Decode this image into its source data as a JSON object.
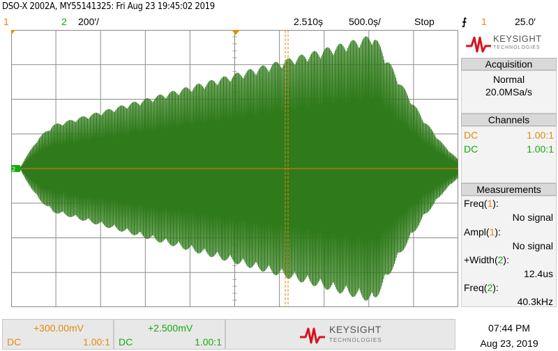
{
  "header": {
    "title": "DSO-X 2002A, MY55141325: Fri Aug 23 19:45:02 2019"
  },
  "status_bar": {
    "ch1_label": "1",
    "ch2_label": "2",
    "ch2_scale": "200′/",
    "trigger_time": "2.510ș",
    "time_scale": "500.0ș/",
    "run_state": "Stop",
    "trigger_source": "1",
    "trigger_level": "25.0′"
  },
  "brand": {
    "name": "KEYSIGHT",
    "sub": "TECHNOLOGIES"
  },
  "acquisition": {
    "header": "Acquisition",
    "mode": "Normal",
    "rate": "20.0MSa/s"
  },
  "channels": {
    "header": "Channels",
    "items": [
      {
        "coupling": "DC",
        "probe": "1.00:1",
        "color": "#e28a0b"
      },
      {
        "coupling": "DC",
        "probe": "1.00:1",
        "color": "#16a80d"
      }
    ]
  },
  "measurements": {
    "header": "Measurements",
    "items": [
      {
        "name": "Freq(",
        "ch": "1",
        "close": "):",
        "value": "No signal",
        "ch_color": "#e28a0b"
      },
      {
        "name": "Ampl(",
        "ch": "1",
        "close": "):",
        "value": "No signal",
        "ch_color": "#e28a0b"
      },
      {
        "name": "+Width(",
        "ch": "2",
        "close": "):",
        "value": "12.4us",
        "ch_color": "#16a80d"
      },
      {
        "name": "Freq(",
        "ch": "2",
        "close": "):",
        "value": "40.3kHz",
        "ch_color": "#16a80d"
      }
    ]
  },
  "bottom": {
    "ch1": {
      "offset": "+300.00mV",
      "coupling": "DC",
      "probe": "1.00:1"
    },
    "ch2": {
      "offset": "+2.500mV",
      "coupling": "DC",
      "probe": "1.00:1"
    }
  },
  "clock": {
    "time": "07:44 PM",
    "date": "Aug 23, 2019"
  },
  "colors": {
    "ch1": "#e28a0b",
    "ch2": "#16a80d",
    "trace": "#2f7a1a",
    "brand_red": "#d8121f"
  }
}
